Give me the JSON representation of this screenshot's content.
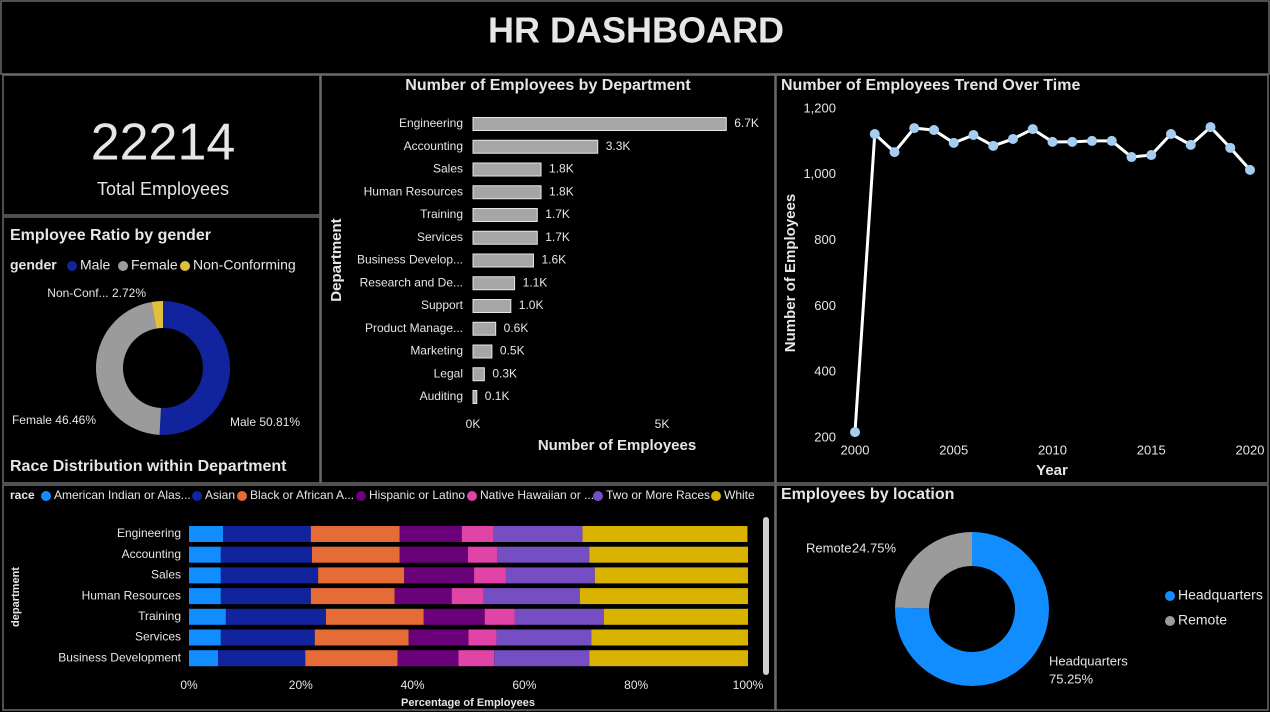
{
  "title": "HR DASHBOARD",
  "kpi": {
    "value": 22214,
    "label": "Total Employees"
  },
  "chart_data": [
    {
      "type": "donut",
      "title": "Employee Ratio by gender",
      "legend_title": "gender",
      "legend": "top",
      "categories": [
        "Male",
        "Female",
        "Non-Conforming"
      ],
      "values": [
        50.81,
        46.46,
        2.72
      ],
      "value_labels": [
        "Male 50.81%",
        "Female 46.46%",
        "Non-Conf... 2.72%"
      ],
      "colors": [
        "#12239e",
        "#9b9b9b",
        "#e0c03a"
      ]
    },
    {
      "type": "bar",
      "orientation": "horizontal",
      "title": "Number of Employees by Department",
      "xlabel": "Number of Employees",
      "ylabel": "Department",
      "categories": [
        "Engineering",
        "Accounting",
        "Sales",
        "Human Resources",
        "Training",
        "Services",
        "Business Develop...",
        "Research and De...",
        "Support",
        "Product Manage...",
        "Marketing",
        "Legal",
        "Auditing"
      ],
      "values": [
        6700,
        3300,
        1800,
        1800,
        1700,
        1700,
        1600,
        1100,
        1000,
        600,
        500,
        300,
        100
      ],
      "value_labels": [
        "6.7K",
        "3.3K",
        "1.8K",
        "1.8K",
        "1.7K",
        "1.7K",
        "1.6K",
        "1.1K",
        "1.0K",
        "0.6K",
        "0.5K",
        "0.3K",
        "0.1K"
      ],
      "color": "#a6a6a6",
      "xlim": [
        0,
        7000
      ],
      "xticks": [
        {
          "value": 0,
          "label": "0K"
        },
        {
          "value": 5000,
          "label": "5K"
        }
      ]
    },
    {
      "type": "line",
      "title": "Number of Employees Trend Over Time",
      "xlabel": "Year",
      "ylabel": "Number of Employees",
      "x": [
        2000,
        2001,
        2002,
        2003,
        2004,
        2005,
        2006,
        2007,
        2008,
        2009,
        2010,
        2011,
        2012,
        2013,
        2014,
        2015,
        2016,
        2017,
        2018,
        2019,
        2020
      ],
      "values": [
        218,
        1124,
        1069,
        1142,
        1136,
        1097,
        1121,
        1088,
        1109,
        1139,
        1100,
        1100,
        1103,
        1103,
        1054,
        1060,
        1124,
        1091,
        1145,
        1082,
        1015
      ],
      "color": "#ffffff",
      "marker_color": "#a5cdf2",
      "xlim": [
        2000,
        2020
      ],
      "xticks": [
        2000,
        2005,
        2010,
        2015,
        2020
      ],
      "ylim": [
        200,
        1200
      ],
      "yticks": [
        200,
        400,
        600,
        800,
        {
          "value": 1000,
          "label": "1,000"
        },
        {
          "value": 1200,
          "label": "1,200"
        }
      ]
    },
    {
      "type": "bar",
      "orientation": "horizontal",
      "stacked": true,
      "title": "Race Distribution within Department",
      "legend_title": "race",
      "legend": "top",
      "xlabel": "Percentage of Employees",
      "ylabel": "department",
      "categories": [
        "Engineering",
        "Accounting",
        "Sales",
        "Human Resources",
        "Training",
        "Services",
        "Business Development"
      ],
      "series": [
        {
          "name": "American Indian or Alas...",
          "color": "#118dff",
          "values": [
            6.1,
            5.7,
            5.7,
            5.7,
            6.6,
            5.7,
            5.2
          ]
        },
        {
          "name": "Asian",
          "color": "#12239e",
          "values": [
            15.7,
            16.3,
            17.4,
            16.1,
            17.9,
            16.8,
            15.6
          ]
        },
        {
          "name": "Black or African A...",
          "color": "#e66c37",
          "values": [
            15.9,
            15.7,
            15.4,
            15.0,
            17.5,
            16.8,
            16.5
          ]
        },
        {
          "name": "Hispanic or Latino",
          "color": "#6b007b",
          "values": [
            11.1,
            12.2,
            12.5,
            10.2,
            10.9,
            10.7,
            10.9
          ]
        },
        {
          "name": "Native Hawaiian or ...",
          "color": "#e044a7",
          "values": [
            5.7,
            5.2,
            5.7,
            5.7,
            5.4,
            5.0,
            6.4
          ]
        },
        {
          "name": "Two or More Races",
          "color": "#744ec2",
          "values": [
            15.9,
            16.5,
            15.9,
            17.2,
            15.9,
            17.0,
            17.0
          ]
        },
        {
          "name": "White",
          "color": "#d9b300",
          "values": [
            29.5,
            28.4,
            27.4,
            30.1,
            25.8,
            28.0,
            28.4
          ]
        }
      ],
      "xlim": [
        0,
        100
      ],
      "xticks": [
        {
          "value": 0,
          "label": "0%"
        },
        {
          "value": 20,
          "label": "20%"
        },
        {
          "value": 40,
          "label": "40%"
        },
        {
          "value": 60,
          "label": "60%"
        },
        {
          "value": 80,
          "label": "80%"
        },
        {
          "value": 100,
          "label": "100%"
        }
      ]
    },
    {
      "type": "donut",
      "title": "Employees by location",
      "legend": "right",
      "categories": [
        "Headquarters",
        "Remote"
      ],
      "values": [
        75.25,
        24.75
      ],
      "value_labels": [
        "75.25%",
        "24.75%"
      ],
      "colors": [
        "#118dff",
        "#9b9b9b"
      ]
    }
  ]
}
